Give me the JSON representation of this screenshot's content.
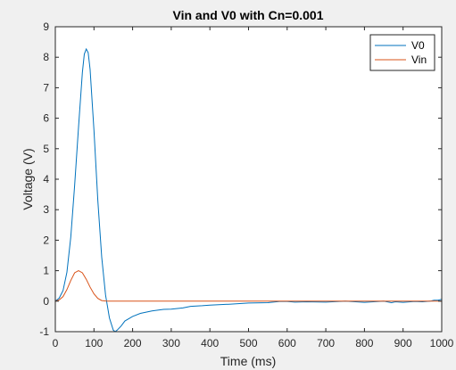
{
  "chart_data": {
    "type": "line",
    "title": "Vin and V0 with Cn=0.001",
    "xlabel": "Time (ms)",
    "ylabel": "Voltage (V)",
    "xlim": [
      0,
      1000
    ],
    "ylim": [
      -1,
      9
    ],
    "xticks": [
      0,
      100,
      200,
      300,
      400,
      500,
      600,
      700,
      800,
      900,
      1000
    ],
    "yticks": [
      -1,
      0,
      1,
      2,
      3,
      4,
      5,
      6,
      7,
      8,
      9
    ],
    "grid": false,
    "legend_position": "top-right",
    "series": [
      {
        "name": "V0",
        "color": "#0072bd",
        "x": [
          0,
          10,
          20,
          30,
          40,
          50,
          60,
          70,
          75,
          80,
          85,
          90,
          100,
          110,
          120,
          130,
          140,
          150,
          155,
          160,
          170,
          180,
          200,
          220,
          250,
          280,
          300,
          330,
          350,
          380,
          400,
          450,
          500,
          550,
          580,
          600,
          620,
          650,
          700,
          750,
          800,
          850,
          870,
          880,
          900,
          930,
          950,
          970,
          980,
          990,
          1000
        ],
        "y": [
          0,
          0.1,
          0.35,
          0.95,
          2.1,
          3.8,
          5.7,
          7.5,
          8.1,
          8.27,
          8.15,
          7.6,
          5.6,
          3.3,
          1.45,
          0.2,
          -0.55,
          -0.95,
          -1.0,
          -0.95,
          -0.82,
          -0.65,
          -0.5,
          -0.4,
          -0.32,
          -0.27,
          -0.26,
          -0.22,
          -0.17,
          -0.15,
          -0.13,
          -0.1,
          -0.06,
          -0.05,
          -0.01,
          -0.01,
          -0.03,
          -0.02,
          -0.03,
          0.0,
          -0.04,
          0.0,
          -0.05,
          -0.02,
          -0.04,
          -0.01,
          -0.02,
          0.0,
          0.03,
          0.03,
          0.06
        ]
      },
      {
        "name": "Vin",
        "color": "#d95319",
        "x": [
          0,
          10,
          20,
          30,
          40,
          50,
          60,
          70,
          80,
          90,
          100,
          110,
          120,
          130,
          140,
          160,
          200,
          400,
          600,
          800,
          1000
        ],
        "y": [
          0,
          0.04,
          0.15,
          0.38,
          0.68,
          0.93,
          1.0,
          0.93,
          0.72,
          0.46,
          0.24,
          0.09,
          0.02,
          0.004,
          0,
          0,
          0,
          0,
          0,
          0,
          0
        ]
      }
    ]
  }
}
